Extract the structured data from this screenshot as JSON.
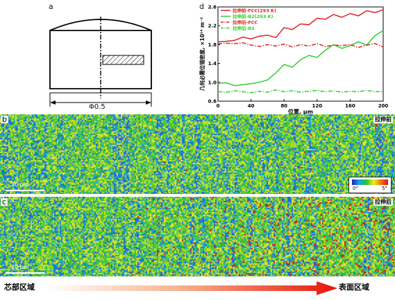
{
  "panel_a": {
    "label": "a",
    "dimension": "Φ0.5"
  },
  "panel_d": {
    "label": "d"
  },
  "chart_data": {
    "type": "line",
    "xlabel": "位置, μm",
    "ylabel": "几何必需位错密度, ×10¹⁴ m⁻²",
    "xlim": [
      0,
      200
    ],
    "ylim": [
      0.6,
      2.6
    ],
    "xticks": [
      0,
      40,
      80,
      120,
      160,
      200
    ],
    "yticks": [
      0.6,
      1.0,
      1.4,
      1.8,
      2.2,
      2.6
    ],
    "legend_position": "top-left",
    "series": [
      {
        "name": "拉伸前-FCC(293 K)",
        "color": "#e02020",
        "style": "solid",
        "x": [
          0,
          10,
          20,
          30,
          40,
          50,
          60,
          70,
          80,
          90,
          100,
          110,
          120,
          130,
          140,
          150,
          160,
          170,
          180,
          190,
          200
        ],
        "values": [
          1.86,
          1.87,
          1.89,
          1.96,
          1.92,
          1.98,
          2.0,
          1.95,
          2.16,
          2.12,
          2.24,
          2.22,
          2.36,
          2.34,
          2.44,
          2.38,
          2.46,
          2.41,
          2.52,
          2.48,
          2.54
        ]
      },
      {
        "name": "拉伸前-B2(293 K)",
        "color": "#33cc33",
        "style": "solid",
        "x": [
          0,
          10,
          20,
          30,
          40,
          50,
          60,
          70,
          80,
          90,
          100,
          110,
          120,
          130,
          140,
          150,
          160,
          170,
          180,
          190,
          200
        ],
        "values": [
          0.98,
          0.99,
          0.93,
          0.95,
          0.97,
          1.0,
          1.05,
          1.2,
          1.38,
          1.32,
          1.48,
          1.57,
          1.53,
          1.68,
          1.8,
          1.72,
          1.78,
          1.86,
          1.79,
          1.99,
          2.1
        ]
      },
      {
        "name": "拉伸后-FCC",
        "color": "#e02020",
        "style": "dashdot",
        "x": [
          0,
          10,
          20,
          30,
          40,
          50,
          60,
          70,
          80,
          90,
          100,
          110,
          120,
          130,
          140,
          150,
          160,
          170,
          180,
          190,
          200
        ],
        "values": [
          1.82,
          1.83,
          1.82,
          1.84,
          1.79,
          1.76,
          1.8,
          1.77,
          1.81,
          1.75,
          1.8,
          1.77,
          1.82,
          1.76,
          1.79,
          1.78,
          1.8,
          1.74,
          1.79,
          1.82,
          1.75
        ]
      },
      {
        "name": "拉伸后-B2",
        "color": "#33cc33",
        "style": "dashdot",
        "x": [
          0,
          10,
          20,
          30,
          40,
          50,
          60,
          70,
          80,
          90,
          100,
          110,
          120,
          130,
          140,
          150,
          160,
          170,
          180,
          190,
          200
        ],
        "values": [
          0.8,
          0.79,
          0.82,
          0.8,
          0.78,
          0.81,
          0.79,
          0.84,
          0.8,
          0.82,
          0.79,
          0.81,
          0.83,
          0.8,
          0.82,
          0.79,
          0.81,
          0.8,
          0.83,
          0.8,
          0.81
        ]
      }
    ]
  },
  "panel_b": {
    "label": "b",
    "title": "拉伸前",
    "scalebar": "20 μm",
    "colorbar": {
      "min": "0°",
      "max": "5°"
    }
  },
  "panel_c": {
    "label": "c",
    "title": "拉伸后",
    "scalebar": "20 μm"
  },
  "arrow_annotation": {
    "left_label": "芯部区域",
    "right_label": "表面区域"
  },
  "colors": {
    "map_green": "#3cbf3c",
    "map_blue": "#1a6fd6",
    "map_yellow": "#e8e62a",
    "map_red": "#d8141a"
  }
}
